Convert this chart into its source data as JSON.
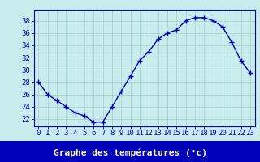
{
  "x": [
    0,
    1,
    2,
    3,
    4,
    5,
    6,
    7,
    8,
    9,
    10,
    11,
    12,
    13,
    14,
    15,
    16,
    17,
    18,
    19,
    20,
    21,
    22,
    23
  ],
  "y": [
    28,
    26,
    25,
    24,
    23,
    22.5,
    21.5,
    21.5,
    24,
    26.5,
    29,
    31.5,
    33,
    35,
    36,
    36.5,
    38,
    38.5,
    38.5,
    38,
    37,
    34.5,
    31.5,
    29.5
  ],
  "line_color": "#0000bb",
  "marker": "+",
  "marker_size": 4,
  "bg_color": "#c8ecec",
  "grid_color": "#a8d4d4",
  "xlabel": "Graphe des températures (°c)",
  "xlabel_fontsize": 8,
  "xtick_labels": [
    "0",
    "1",
    "2",
    "3",
    "4",
    "5",
    "6",
    "7",
    "8",
    "9",
    "10",
    "11",
    "12",
    "13",
    "14",
    "15",
    "16",
    "17",
    "18",
    "19",
    "20",
    "21",
    "22",
    "23"
  ],
  "yticks": [
    22,
    24,
    26,
    28,
    30,
    32,
    34,
    36,
    38
  ],
  "ylim": [
    20.8,
    39.8
  ],
  "xlim": [
    -0.5,
    23.5
  ],
  "tick_fontsize": 6.5,
  "axis_color": "#0000bb",
  "spine_color": "#0000bb",
  "xaxis_bg": "#0000bb",
  "xaxis_label_color": "#ffffff"
}
